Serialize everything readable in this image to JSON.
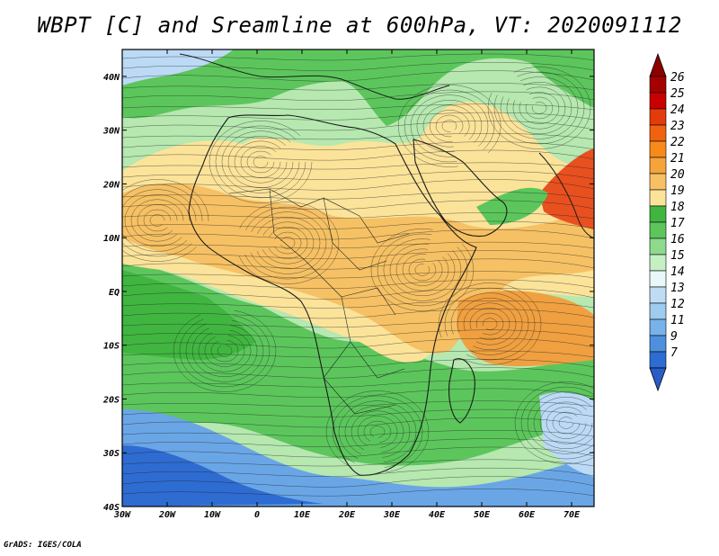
{
  "title": "WBPT [C] and Sreamline at 600hPa, VT: 2020091112",
  "credit": "GrADS: IGES/COLA",
  "map": {
    "lon_range": [
      -30,
      75
    ],
    "lat_range": [
      -40,
      45
    ],
    "lon_ticks": [
      {
        "value": -30,
        "label": "30W"
      },
      {
        "value": -20,
        "label": "20W"
      },
      {
        "value": -10,
        "label": "10W"
      },
      {
        "value": 0,
        "label": "0"
      },
      {
        "value": 10,
        "label": "10E"
      },
      {
        "value": 20,
        "label": "20E"
      },
      {
        "value": 30,
        "label": "30E"
      },
      {
        "value": 40,
        "label": "40E"
      },
      {
        "value": 50,
        "label": "50E"
      },
      {
        "value": 60,
        "label": "60E"
      },
      {
        "value": 70,
        "label": "70E"
      }
    ],
    "lat_ticks": [
      {
        "value": 40,
        "label": "40N"
      },
      {
        "value": 30,
        "label": "30N"
      },
      {
        "value": 20,
        "label": "20N"
      },
      {
        "value": 10,
        "label": "10N"
      },
      {
        "value": 0,
        "label": "EQ"
      },
      {
        "value": -10,
        "label": "10S"
      },
      {
        "value": -20,
        "label": "20S"
      },
      {
        "value": -30,
        "label": "30S"
      },
      {
        "value": -40,
        "label": "40S"
      }
    ]
  },
  "colorbar": {
    "labels": [
      "26",
      "25",
      "24",
      "23",
      "22",
      "21",
      "20",
      "19",
      "18",
      "17",
      "16",
      "15",
      "14",
      "13",
      "12",
      "11",
      "9",
      "7"
    ],
    "colors": [
      "#a50000",
      "#c80000",
      "#e43b0a",
      "#f0620e",
      "#f78a1a",
      "#f5a43c",
      "#f6c164",
      "#fbe39a",
      "#40b640",
      "#5cc65c",
      "#8ed98e",
      "#c4f0c4",
      "#e8f8f8",
      "#c0dcf4",
      "#9ecbf0",
      "#78b2ea",
      "#4e90de",
      "#2e6cd2"
    ],
    "top_arrow_color": "#8c0000",
    "bottom_arrow_color": "#2a5cc8"
  },
  "palette": {
    "cold": "#2e6cd2",
    "cool": "#6aa6e6",
    "light_blue": "#bcdaf6",
    "pale_green": "#b6e8b0",
    "green": "#5cc65c",
    "dark_green": "#40b640",
    "pale_yellow": "#fbe39a",
    "light_orange": "#f6c164",
    "orange": "#f0a040",
    "red_orange": "#e85020"
  }
}
